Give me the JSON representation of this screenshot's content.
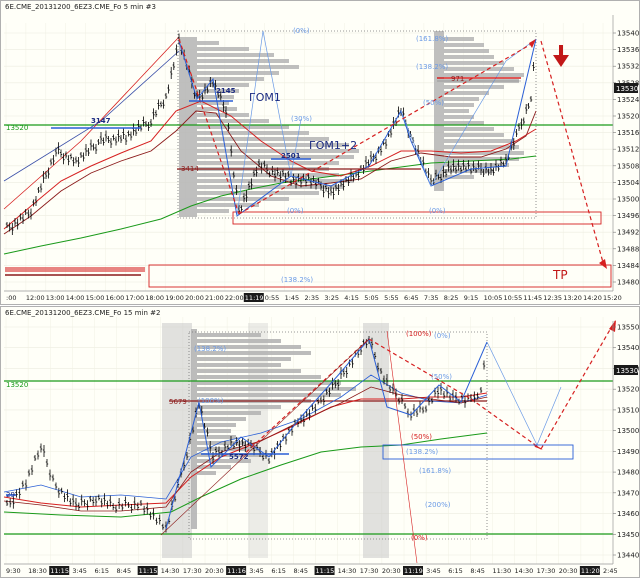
{
  "panels": [
    {
      "title": "6E.CME_20131200_6EZ3.CME_Fo  5 min  #3",
      "price_ticks": [
        "13540",
        "13536",
        "13532",
        "13528",
        "13524",
        "13520",
        "13516",
        "13512",
        "13508",
        "13504",
        "13500",
        "13496",
        "13492",
        "13488",
        "13484",
        "13480"
      ],
      "current_price": "13530",
      "time_ticks": [
        ":00",
        "12:00",
        "13:00",
        "14:00",
        "15:00",
        "16:00",
        "17:00",
        "18:00",
        "19:00",
        "20:00",
        "21:00",
        "22:00",
        "11:19",
        "0:55",
        "1:45",
        "2:35",
        "3:25",
        "4:15",
        "5:05",
        "5:55",
        "6:45",
        "7:35",
        "8:25",
        "9:15",
        "10:05",
        "10:55",
        "11:45",
        "12:35",
        "13:20",
        "14:20",
        "15:20"
      ],
      "highlighted_time": "11:19",
      "left_price_label": "13520",
      "annotations": {
        "gom1": "ГОМ1",
        "gom12": "ГОМ1+2",
        "tp": "TP",
        "vol_2145": "2145",
        "vol_3147": "3147",
        "vol_2501": "2501",
        "vol_3414": "3414",
        "vol_971": "971",
        "fib_0_top": "(0%)",
        "fib_1618": "(161.8%)",
        "fib_1382": "(138.2%)",
        "fib_50": "(50%)",
        "fib_30": "(30%)",
        "fib_0_low": "(0%)",
        "fib_0_low2": "(0%)",
        "fib_1382_bottom": "(138.2%)"
      }
    },
    {
      "title": "6E.CME_20131200_6EZ3.CME_Fo  15 min  #2",
      "price_ticks": [
        "13550",
        "13540",
        "13530",
        "13520",
        "13510",
        "13500",
        "13490",
        "13480",
        "13470",
        "13460",
        "13450",
        "13440"
      ],
      "current_price": "13530",
      "time_ticks": [
        "9:30",
        "18:30",
        "11:15",
        "3:45",
        "6:15",
        "8:45",
        "11:15",
        "14:30",
        "17:30",
        "20:30",
        "11:16",
        "3:45",
        "6:15",
        "8:45",
        "11:15",
        "14:30",
        "17:30",
        "20:30",
        "11:19",
        "3:45",
        "6:15",
        "8:45",
        "11:30",
        "14:30",
        "17:30",
        "20:30",
        "11:20",
        "2:45"
      ],
      "left_price_label": "13520",
      "annotations": {
        "vol_5679": "5679",
        "vol_5572": "5572",
        "fib_1382": "(138.2%)",
        "fib_100": "(100%)",
        "fib_0_top": "(0%)",
        "fib_50_r": "(50%)",
        "fib_50": "(50%)",
        "fib_100b": "(100%)",
        "fib_1382b": "(138.2%)",
        "fib_1618": "(161.8%)",
        "fib_200": "(200%)",
        "fib_0_left": "(0%)",
        "left_small": "29"
      }
    }
  ],
  "colors": {
    "background": "#fffff8",
    "grid": "#e6e6d8",
    "candle": "#000000",
    "green_line": "#1a9a1a",
    "red_ma": "#d62020",
    "dark_red": "#8b1a1a",
    "blue": "#2a5fd6",
    "light_blue": "#6a9ae6",
    "profile": "#b8b8b8",
    "tp_red": "#d62020"
  }
}
